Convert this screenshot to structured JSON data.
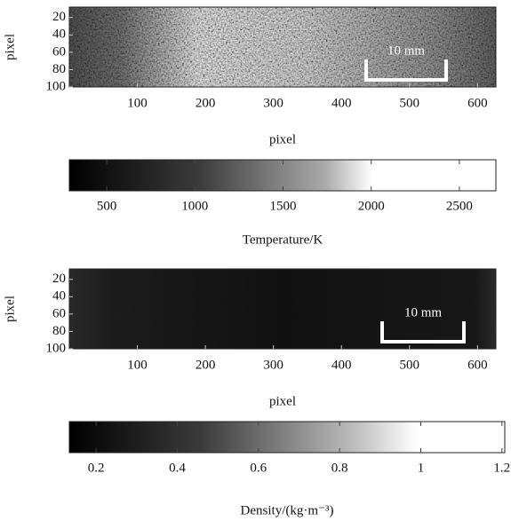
{
  "chart_data": [
    {
      "type": "image",
      "xlabel": "pixel",
      "ylabel": "pixel",
      "xlim": [
        0,
        627
      ],
      "ylim": [
        100,
        8
      ],
      "xticks": [
        100,
        200,
        300,
        400,
        500,
        600
      ],
      "yticks": [
        20,
        40,
        60,
        80,
        100
      ],
      "scale_bar": "10 mm"
    },
    {
      "type": "colorbar",
      "label": "Temperature/K",
      "xlim": [
        288,
        2707
      ],
      "xticks": [
        500,
        1000,
        1500,
        2000,
        2500
      ]
    },
    {
      "type": "image",
      "xlabel": "pixel",
      "ylabel": "pixel",
      "xlim": [
        0,
        627
      ],
      "ylim": [
        100,
        8
      ],
      "xticks": [
        100,
        200,
        300,
        400,
        500,
        600
      ],
      "yticks": [
        20,
        40,
        60,
        80,
        100
      ],
      "scale_bar": "10 mm"
    },
    {
      "type": "colorbar",
      "label": "Density/(kg·m⁻³)",
      "xlim": [
        0.134,
        1.207
      ],
      "xticks": [
        0.2,
        0.4,
        0.6,
        0.8,
        1,
        1.2
      ]
    }
  ]
}
